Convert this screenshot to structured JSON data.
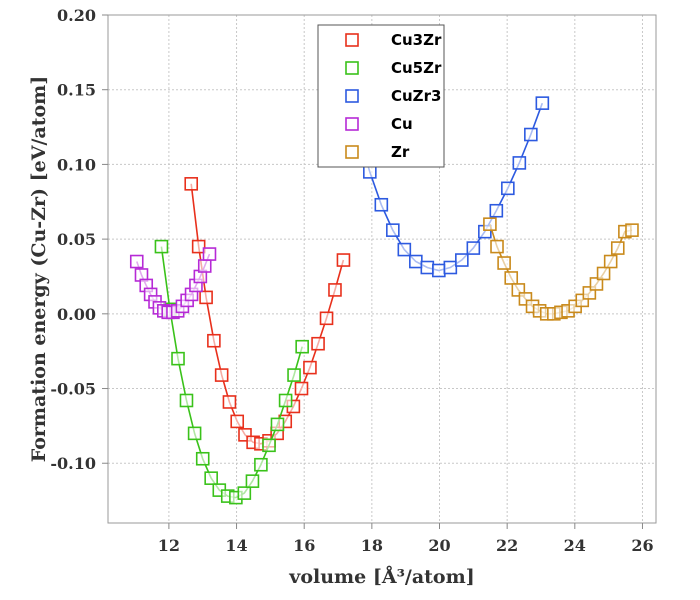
{
  "chart_data": {
    "type": "line",
    "title": "",
    "xlabel": "volume [Å³/atom]",
    "ylabel": "Formation energy (Cu-Zr) [eV/atom]",
    "xlim": [
      10.2,
      26.4
    ],
    "ylim": [
      -0.14,
      0.2
    ],
    "x_ticks": [
      12,
      14,
      16,
      18,
      20,
      22,
      24,
      26
    ],
    "y_ticks": [
      -0.1,
      -0.05,
      0.0,
      0.05,
      0.1,
      0.15,
      0.2
    ],
    "x_tick_labels": [
      "12",
      "14",
      "16",
      "18",
      "20",
      "22",
      "24",
      "26"
    ],
    "y_tick_labels": [
      "-0.10",
      "-0.05",
      "0.00",
      "0.05",
      "0.10",
      "0.15",
      "0.20"
    ],
    "grid": true,
    "legend_position": "top-center",
    "series": [
      {
        "name": "Cu3Zr",
        "color": "#e8301c",
        "x": [
          12.66,
          12.88,
          13.1,
          13.33,
          13.56,
          13.79,
          14.02,
          14.25,
          14.49,
          14.72,
          14.96,
          15.2,
          15.44,
          15.68,
          15.92,
          16.17,
          16.41,
          16.66,
          16.91,
          17.16
        ],
        "y": [
          0.087,
          0.045,
          0.011,
          -0.018,
          -0.041,
          -0.059,
          -0.072,
          -0.081,
          -0.086,
          -0.087,
          -0.085,
          -0.08,
          -0.072,
          -0.062,
          -0.05,
          -0.036,
          -0.02,
          -0.003,
          0.016,
          0.036
        ]
      },
      {
        "name": "Cu5Zr",
        "color": "#3ac21a",
        "x": [
          11.78,
          12.03,
          12.27,
          12.52,
          12.76,
          13.0,
          13.25,
          13.49,
          13.74,
          13.98,
          14.23,
          14.47,
          14.72,
          14.96,
          15.21,
          15.45,
          15.7,
          15.94
        ],
        "y": [
          0.045,
          0.003,
          -0.03,
          -0.058,
          -0.08,
          -0.097,
          -0.11,
          -0.118,
          -0.122,
          -0.123,
          -0.12,
          -0.112,
          -0.101,
          -0.088,
          -0.074,
          -0.058,
          -0.041,
          -0.022
        ]
      },
      {
        "name": "CuZr3",
        "color": "#2d5ae0",
        "x": [
          17.6,
          17.94,
          18.28,
          18.62,
          18.96,
          19.3,
          19.64,
          19.98,
          20.32,
          20.66,
          21.0,
          21.34,
          21.68,
          22.02,
          22.36,
          22.7,
          23.04
        ],
        "y": [
          0.121,
          0.095,
          0.073,
          0.056,
          0.043,
          0.035,
          0.031,
          0.029,
          0.031,
          0.036,
          0.044,
          0.055,
          0.069,
          0.084,
          0.101,
          0.12,
          0.141
        ]
      },
      {
        "name": "Cu",
        "color": "#b62ad6",
        "x": [
          11.05,
          11.19,
          11.33,
          11.46,
          11.59,
          11.72,
          11.85,
          11.98,
          12.12,
          12.26,
          12.4,
          12.54,
          12.67,
          12.8,
          12.93,
          13.06,
          13.2
        ],
        "y": [
          0.035,
          0.026,
          0.019,
          0.013,
          0.008,
          0.004,
          0.002,
          0.001,
          0.001,
          0.002,
          0.005,
          0.009,
          0.013,
          0.019,
          0.025,
          0.032,
          0.04
        ]
      },
      {
        "name": "Zr",
        "color": "#c98a1c",
        "x": [
          21.49,
          21.7,
          21.91,
          22.12,
          22.33,
          22.54,
          22.75,
          22.96,
          23.17,
          23.38,
          23.59,
          23.8,
          24.01,
          24.22,
          24.43,
          24.64,
          24.85,
          25.06,
          25.27,
          25.48,
          25.69
        ],
        "y": [
          0.06,
          0.045,
          0.034,
          0.024,
          0.016,
          0.01,
          0.005,
          0.002,
          0.0,
          0.0,
          0.001,
          0.002,
          0.005,
          0.009,
          0.014,
          0.02,
          0.027,
          0.035,
          0.044,
          0.055,
          0.056
        ]
      }
    ]
  }
}
